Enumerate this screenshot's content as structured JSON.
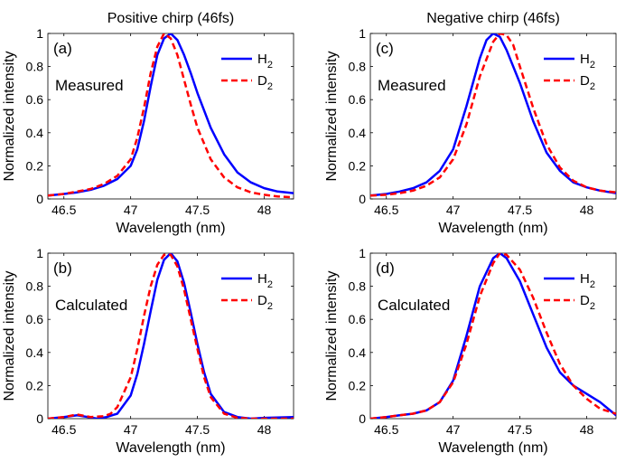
{
  "colors": {
    "h2": "#0000ff",
    "d2": "#ff0000",
    "axis": "#000000"
  },
  "chart_data": [
    {
      "id": "a",
      "type": "line",
      "title": "Positive chirp (46fs)",
      "panel_label": "(a)",
      "annotation": "Measured",
      "xlabel": "Wavelength (nm)",
      "ylabel": "Normalized intensity",
      "xlim": [
        46.38,
        48.22
      ],
      "ylim": [
        0,
        1
      ],
      "xticks": [
        46.5,
        47,
        47.5,
        48
      ],
      "xticklabels": [
        "46.5",
        "47",
        "47.5",
        "48"
      ],
      "yticks": [
        0,
        0.2,
        0.4,
        0.6,
        0.8,
        1
      ],
      "yticklabels": [
        "0",
        "0.2",
        "0.4",
        "0.6",
        "0.8",
        "1"
      ],
      "legend_position": "top-right",
      "series": [
        {
          "name": "H",
          "subscript": "2",
          "color": "#0000ff",
          "style": "solid",
          "x": [
            46.38,
            46.5,
            46.6,
            46.7,
            46.8,
            46.9,
            47.0,
            47.05,
            47.1,
            47.15,
            47.2,
            47.25,
            47.3,
            47.35,
            47.4,
            47.45,
            47.5,
            47.6,
            47.7,
            47.8,
            47.9,
            48.0,
            48.1,
            48.22
          ],
          "y": [
            0.02,
            0.03,
            0.04,
            0.055,
            0.08,
            0.12,
            0.2,
            0.3,
            0.47,
            0.68,
            0.87,
            0.97,
            1.0,
            0.96,
            0.87,
            0.76,
            0.64,
            0.43,
            0.27,
            0.16,
            0.1,
            0.065,
            0.045,
            0.035
          ]
        },
        {
          "name": "D",
          "subscript": "2",
          "color": "#ff0000",
          "style": "dashed",
          "x": [
            46.38,
            46.5,
            46.6,
            46.7,
            46.8,
            46.9,
            47.0,
            47.05,
            47.1,
            47.15,
            47.2,
            47.25,
            47.3,
            47.35,
            47.4,
            47.45,
            47.5,
            47.6,
            47.7,
            47.8,
            47.9,
            48.0,
            48.1,
            48.22
          ],
          "y": [
            0.02,
            0.03,
            0.045,
            0.06,
            0.09,
            0.14,
            0.24,
            0.37,
            0.55,
            0.76,
            0.92,
            1.0,
            0.97,
            0.87,
            0.72,
            0.57,
            0.43,
            0.24,
            0.13,
            0.07,
            0.04,
            0.025,
            0.015,
            0.01
          ]
        }
      ]
    },
    {
      "id": "c",
      "type": "line",
      "title": "Negative chirp (46fs)",
      "panel_label": "(c)",
      "annotation": "Measured",
      "xlabel": "Wavelength (nm)",
      "ylabel": "Normalized intensity",
      "xlim": [
        46.38,
        48.22
      ],
      "ylim": [
        0,
        1
      ],
      "xticks": [
        46.5,
        47,
        47.5,
        48
      ],
      "xticklabels": [
        "46.5",
        "47",
        "47.5",
        "48"
      ],
      "yticks": [
        0,
        0.2,
        0.4,
        0.6,
        0.8,
        1
      ],
      "yticklabels": [
        "0",
        "0.2",
        "0.4",
        "0.6",
        "0.8",
        "1"
      ],
      "legend_position": "top-right",
      "series": [
        {
          "name": "H",
          "subscript": "2",
          "color": "#0000ff",
          "style": "solid",
          "x": [
            46.38,
            46.5,
            46.6,
            46.7,
            46.8,
            46.9,
            47.0,
            47.1,
            47.2,
            47.25,
            47.3,
            47.35,
            47.4,
            47.5,
            47.6,
            47.7,
            47.8,
            47.9,
            48.0,
            48.1,
            48.22
          ],
          "y": [
            0.02,
            0.03,
            0.045,
            0.065,
            0.1,
            0.17,
            0.3,
            0.56,
            0.85,
            0.96,
            1.0,
            0.98,
            0.9,
            0.7,
            0.47,
            0.28,
            0.17,
            0.1,
            0.07,
            0.05,
            0.035
          ]
        },
        {
          "name": "D",
          "subscript": "2",
          "color": "#ff0000",
          "style": "dashed",
          "x": [
            46.38,
            46.5,
            46.6,
            46.7,
            46.8,
            46.9,
            47.0,
            47.1,
            47.2,
            47.3,
            47.35,
            47.4,
            47.45,
            47.5,
            47.6,
            47.7,
            47.8,
            47.9,
            48.0,
            48.1,
            48.22
          ],
          "y": [
            0.02,
            0.025,
            0.035,
            0.05,
            0.08,
            0.13,
            0.24,
            0.45,
            0.74,
            0.95,
            1.0,
            0.99,
            0.93,
            0.8,
            0.55,
            0.33,
            0.19,
            0.11,
            0.07,
            0.05,
            0.04
          ]
        }
      ]
    },
    {
      "id": "b",
      "type": "line",
      "title": "",
      "panel_label": "(b)",
      "annotation": "Calculated",
      "xlabel": "Wavelength (nm)",
      "ylabel": "Normalized intensity",
      "xlim": [
        46.38,
        48.22
      ],
      "ylim": [
        0,
        1
      ],
      "xticks": [
        46.5,
        47,
        47.5,
        48
      ],
      "xticklabels": [
        "46.5",
        "47",
        "47.5",
        "48"
      ],
      "yticks": [
        0,
        0.2,
        0.4,
        0.6,
        0.8,
        1
      ],
      "yticklabels": [
        "0",
        "0.2",
        "0.4",
        "0.6",
        "0.8",
        "1"
      ],
      "legend_position": "top-right",
      "series": [
        {
          "name": "H",
          "subscript": "2",
          "color": "#0000ff",
          "style": "solid",
          "x": [
            46.38,
            46.5,
            46.6,
            46.68,
            46.75,
            46.82,
            46.9,
            47.0,
            47.05,
            47.1,
            47.15,
            47.2,
            47.25,
            47.3,
            47.35,
            47.4,
            47.45,
            47.5,
            47.55,
            47.6,
            47.7,
            47.8,
            47.9,
            48.0,
            48.22
          ],
          "y": [
            0.0,
            0.01,
            0.02,
            0.01,
            0.0,
            0.01,
            0.03,
            0.14,
            0.27,
            0.45,
            0.65,
            0.84,
            0.96,
            1.0,
            0.95,
            0.82,
            0.64,
            0.45,
            0.28,
            0.15,
            0.04,
            0.01,
            0.0,
            0.005,
            0.01
          ]
        },
        {
          "name": "D",
          "subscript": "2",
          "color": "#ff0000",
          "style": "dashed",
          "x": [
            46.38,
            46.5,
            46.6,
            46.7,
            46.8,
            46.85,
            46.9,
            47.0,
            47.05,
            47.1,
            47.15,
            47.2,
            47.25,
            47.3,
            47.35,
            47.4,
            47.45,
            47.5,
            47.55,
            47.6,
            47.7,
            47.8,
            47.9,
            48.22
          ],
          "y": [
            0.0,
            0.01,
            0.025,
            0.01,
            0.015,
            0.03,
            0.07,
            0.25,
            0.42,
            0.62,
            0.8,
            0.93,
            0.99,
            0.99,
            0.92,
            0.78,
            0.6,
            0.42,
            0.25,
            0.13,
            0.03,
            0.005,
            0.0,
            0.0
          ]
        }
      ]
    },
    {
      "id": "d",
      "type": "line",
      "title": "",
      "panel_label": "(d)",
      "annotation": "Calculated",
      "xlabel": "Wavelength (nm)",
      "ylabel": "Normalized intensity",
      "xlim": [
        46.38,
        48.22
      ],
      "ylim": [
        0,
        1
      ],
      "xticks": [
        46.5,
        47,
        47.5,
        48
      ],
      "xticklabels": [
        "46.5",
        "47",
        "47.5",
        "48"
      ],
      "yticks": [
        0,
        0.2,
        0.4,
        0.6,
        0.8,
        1
      ],
      "yticklabels": [
        "0",
        "0.2",
        "0.4",
        "0.6",
        "0.8",
        "1"
      ],
      "legend_position": "top-right",
      "series": [
        {
          "name": "H",
          "subscript": "2",
          "color": "#0000ff",
          "style": "solid",
          "x": [
            46.38,
            46.5,
            46.6,
            46.7,
            46.8,
            46.9,
            47.0,
            47.1,
            47.2,
            47.3,
            47.35,
            47.4,
            47.5,
            47.6,
            47.7,
            47.8,
            47.9,
            48.0,
            48.1,
            48.22
          ],
          "y": [
            0.0,
            0.01,
            0.02,
            0.03,
            0.05,
            0.1,
            0.23,
            0.5,
            0.8,
            0.97,
            1.0,
            0.97,
            0.83,
            0.63,
            0.43,
            0.28,
            0.2,
            0.15,
            0.1,
            0.02
          ]
        },
        {
          "name": "D",
          "subscript": "2",
          "color": "#ff0000",
          "style": "dashed",
          "x": [
            46.38,
            46.5,
            46.6,
            46.7,
            46.8,
            46.9,
            47.0,
            47.1,
            47.2,
            47.3,
            47.35,
            47.4,
            47.5,
            47.6,
            47.7,
            47.8,
            47.9,
            48.0,
            48.1,
            48.22
          ],
          "y": [
            0.0,
            0.01,
            0.02,
            0.03,
            0.05,
            0.1,
            0.22,
            0.45,
            0.74,
            0.94,
            1.0,
            0.99,
            0.9,
            0.73,
            0.52,
            0.33,
            0.2,
            0.12,
            0.06,
            0.03
          ]
        }
      ]
    }
  ]
}
